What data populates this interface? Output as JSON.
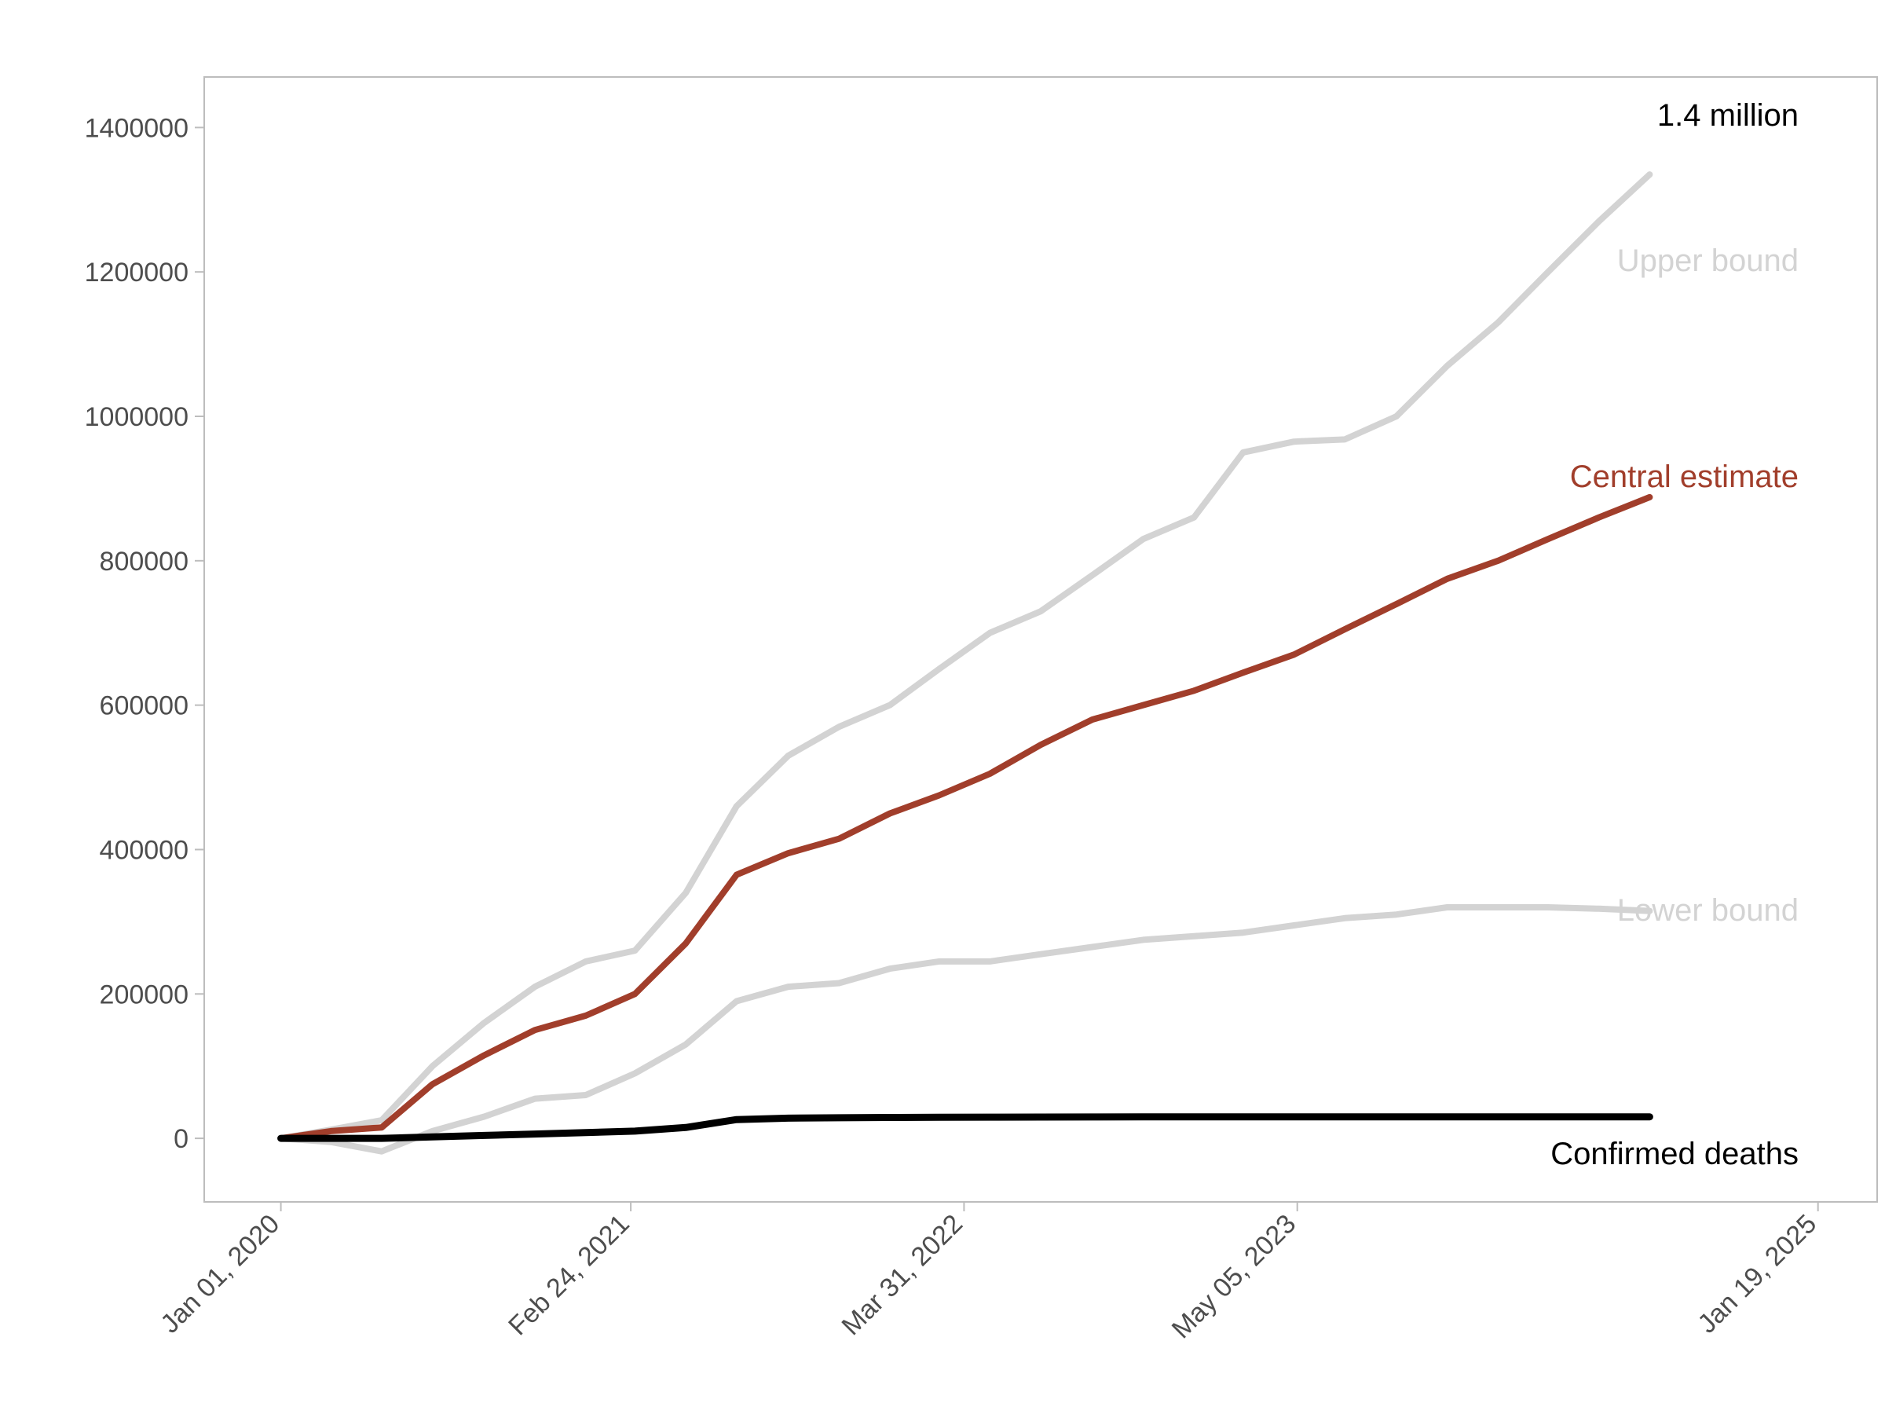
{
  "chart_data": {
    "type": "line",
    "title": "",
    "xlabel": "",
    "ylabel": "",
    "x_ticks": [
      "2020-01-01",
      "2021-02-24",
      "2022-03-31",
      "2023-05-05",
      "2025-01-19"
    ],
    "x_tick_labels": [
      "Jan 01, 2020",
      "Feb 24, 2021",
      "Mar 31, 2022",
      "May 05, 2023",
      "Jan 19, 2025"
    ],
    "xlim": [
      "2019-10-01",
      "2025-03-31"
    ],
    "y_ticks": [
      0,
      200000,
      400000,
      600000,
      800000,
      1000000,
      1200000,
      1400000
    ],
    "y_tick_labels": [
      "0",
      "200000",
      "400000",
      "600000",
      "800000",
      "1000000",
      "1200000",
      "1400000"
    ],
    "ylim": [
      -88000,
      1470000
    ],
    "grid": false,
    "colors": {
      "upper": "#d3d3d3",
      "central": "#a13e2b",
      "lower": "#d3d3d3",
      "confirmed": "#000000",
      "frame": "#bdbdbd"
    },
    "annotations": {
      "top": "1.4 million",
      "upper": "Upper bound",
      "central": "Central estimate",
      "lower": "Lower bound",
      "confirmed": "Confirmed deaths"
    },
    "series": [
      {
        "key": "upper",
        "x": [
          "2020-01-01",
          "2020-03-01",
          "2020-05-01",
          "2020-07-01",
          "2020-09-01",
          "2020-11-01",
          "2021-01-01",
          "2021-03-01",
          "2021-05-01",
          "2021-07-01",
          "2021-09-01",
          "2021-11-01",
          "2022-01-01",
          "2022-03-01",
          "2022-05-01",
          "2022-07-01",
          "2022-09-01",
          "2022-11-01",
          "2023-01-01",
          "2023-03-01",
          "2023-05-01",
          "2023-07-01",
          "2023-09-01",
          "2023-11-01",
          "2024-01-01",
          "2024-03-01",
          "2024-05-01",
          "2024-07-01"
        ],
        "values": [
          0,
          12000,
          25000,
          100000,
          160000,
          210000,
          245000,
          260000,
          340000,
          460000,
          530000,
          570000,
          600000,
          650000,
          700000,
          730000,
          780000,
          830000,
          860000,
          950000,
          965000,
          968000,
          1000000,
          1070000,
          1130000,
          1200000,
          1270000,
          1335000
        ]
      },
      {
        "key": "central",
        "x": [
          "2020-01-01",
          "2020-03-01",
          "2020-05-01",
          "2020-07-01",
          "2020-09-01",
          "2020-11-01",
          "2021-01-01",
          "2021-03-01",
          "2021-05-01",
          "2021-07-01",
          "2021-09-01",
          "2021-11-01",
          "2022-01-01",
          "2022-03-01",
          "2022-05-01",
          "2022-07-01",
          "2022-09-01",
          "2022-11-01",
          "2023-01-01",
          "2023-03-01",
          "2023-05-01",
          "2023-07-01",
          "2023-09-01",
          "2023-11-01",
          "2024-01-01",
          "2024-03-01",
          "2024-05-01",
          "2024-07-01"
        ],
        "values": [
          0,
          10000,
          15000,
          75000,
          115000,
          150000,
          170000,
          200000,
          270000,
          365000,
          395000,
          415000,
          450000,
          475000,
          505000,
          545000,
          580000,
          600000,
          620000,
          645000,
          670000,
          705000,
          740000,
          775000,
          800000,
          830000,
          860000,
          888000
        ]
      },
      {
        "key": "lower",
        "x": [
          "2020-01-01",
          "2020-03-01",
          "2020-05-01",
          "2020-07-01",
          "2020-09-01",
          "2020-11-01",
          "2021-01-01",
          "2021-03-01",
          "2021-05-01",
          "2021-07-01",
          "2021-09-01",
          "2021-11-01",
          "2022-01-01",
          "2022-03-01",
          "2022-05-01",
          "2022-07-01",
          "2022-09-01",
          "2022-11-01",
          "2023-01-01",
          "2023-03-01",
          "2023-05-01",
          "2023-07-01",
          "2023-09-01",
          "2023-11-01",
          "2024-01-01",
          "2024-03-01",
          "2024-05-01",
          "2024-07-01"
        ],
        "values": [
          0,
          -5000,
          -18000,
          10000,
          30000,
          55000,
          60000,
          90000,
          130000,
          190000,
          210000,
          215000,
          235000,
          245000,
          245000,
          255000,
          265000,
          275000,
          280000,
          285000,
          295000,
          305000,
          310000,
          320000,
          320000,
          320000,
          318000,
          315000
        ]
      },
      {
        "key": "confirmed",
        "x": [
          "2020-01-01",
          "2020-03-01",
          "2020-05-01",
          "2020-07-01",
          "2020-09-01",
          "2020-11-01",
          "2021-01-01",
          "2021-03-01",
          "2021-05-01",
          "2021-07-01",
          "2021-09-01",
          "2021-11-01",
          "2022-01-01",
          "2022-03-01",
          "2022-05-01",
          "2022-07-01",
          "2022-09-01",
          "2022-11-01",
          "2023-01-01",
          "2023-03-01",
          "2023-05-01",
          "2023-07-01",
          "2023-09-01",
          "2023-11-01",
          "2024-01-01",
          "2024-03-01",
          "2024-05-01",
          "2024-07-01"
        ],
        "values": [
          0,
          0,
          0,
          2000,
          4000,
          6000,
          8000,
          10000,
          15000,
          26000,
          28000,
          28500,
          29000,
          29200,
          29400,
          29500,
          29600,
          29700,
          29700,
          29800,
          29800,
          29800,
          29800,
          29800,
          29800,
          29800,
          29800,
          29800
        ]
      }
    ]
  }
}
